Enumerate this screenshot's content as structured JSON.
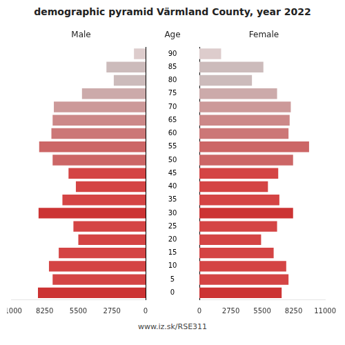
{
  "chart_data": {
    "type": "bar",
    "orientation": "horizontal",
    "title": "demographic pyramid Värmland County, year 2022",
    "ylabel": "Age",
    "footnote": "www.iz.sk/RSE311",
    "categories": [
      0,
      5,
      10,
      15,
      20,
      25,
      30,
      35,
      40,
      45,
      50,
      55,
      60,
      65,
      70,
      75,
      80,
      85,
      90
    ],
    "series": [
      {
        "name": "Male",
        "values": [
          8800,
          7600,
          7900,
          7100,
          5500,
          5900,
          8750,
          6800,
          5700,
          6300,
          7600,
          8700,
          7700,
          7600,
          7500,
          5200,
          2600,
          3200,
          950
        ],
        "colors": [
          "#cc3333",
          "#d44444",
          "#d44444",
          "#d44444",
          "#d44444",
          "#d44444",
          "#cc3333",
          "#d44444",
          "#d44444",
          "#d44444",
          "#cc6666",
          "#cc6666",
          "#cc7777",
          "#cc8888",
          "#cc9999",
          "#ccaaaa",
          "#ccbbbb",
          "#ccbbbb",
          "#ddcccc"
        ]
      },
      {
        "name": "Female",
        "values": [
          7200,
          7800,
          7600,
          6500,
          5400,
          6800,
          8200,
          7000,
          6000,
          6900,
          8200,
          9600,
          7800,
          7900,
          8000,
          6800,
          4600,
          5600,
          1900
        ],
        "colors": [
          "#cc3333",
          "#d44444",
          "#d44444",
          "#d44444",
          "#d44444",
          "#d44444",
          "#cc3333",
          "#d44444",
          "#d44444",
          "#d44444",
          "#cc6666",
          "#cc6666",
          "#cc7777",
          "#cc8888",
          "#cc9999",
          "#ccaaaa",
          "#ccbbbb",
          "#ccbbbb",
          "#ddcccc"
        ]
      }
    ],
    "xlim": [
      0,
      11000
    ],
    "xticks": [
      0,
      2750,
      5500,
      8250,
      11000
    ],
    "grid": false
  }
}
